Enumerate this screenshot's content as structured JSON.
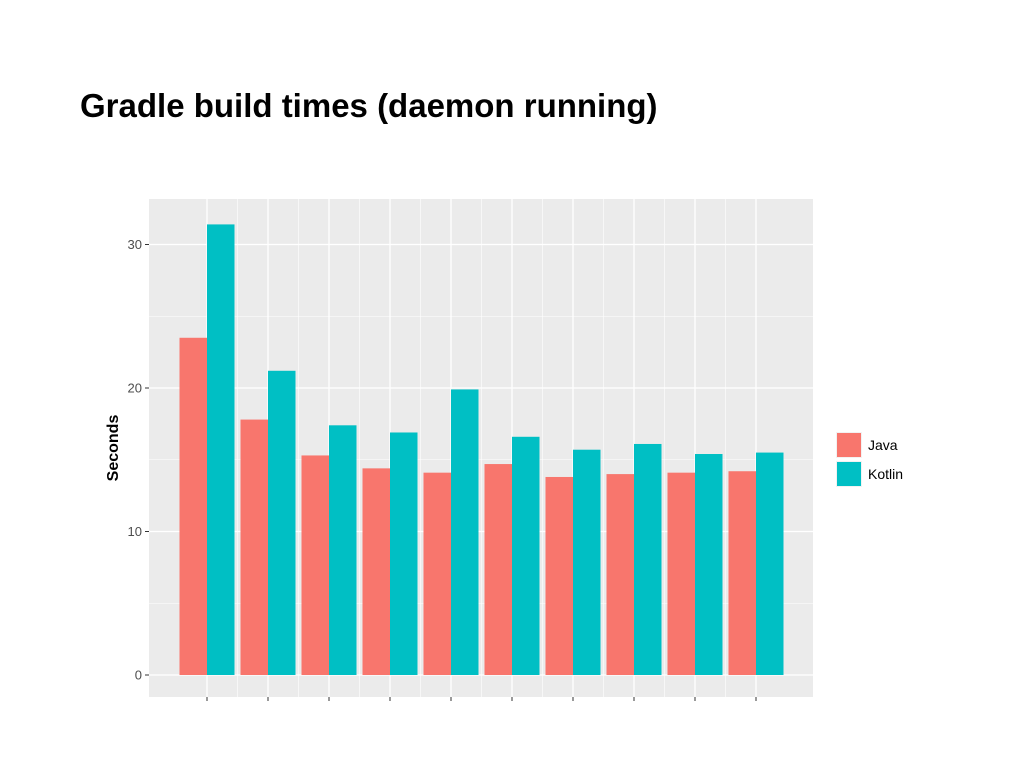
{
  "slide": {
    "title": "Gradle build times (daemon running)"
  },
  "chart_data": {
    "type": "bar",
    "categories": [
      "",
      "",
      "",
      "",
      "",
      "",
      "",
      "",
      "",
      ""
    ],
    "series": [
      {
        "name": "Java",
        "color": "#F8766D",
        "values": [
          23.5,
          17.8,
          15.3,
          14.4,
          14.1,
          14.7,
          13.8,
          14.0,
          14.1,
          14.2
        ]
      },
      {
        "name": "Kotlin",
        "color": "#00BFC4",
        "values": [
          31.4,
          21.2,
          17.4,
          16.9,
          19.9,
          16.6,
          15.7,
          16.1,
          15.4,
          15.5
        ]
      }
    ],
    "title": "",
    "xlabel": "",
    "ylabel": "Seconds",
    "ylim": [
      0,
      33
    ],
    "yticks": [
      0,
      10,
      20,
      30
    ],
    "grid": true,
    "panel_background": "#EBEBEB",
    "legend_position": "right"
  }
}
